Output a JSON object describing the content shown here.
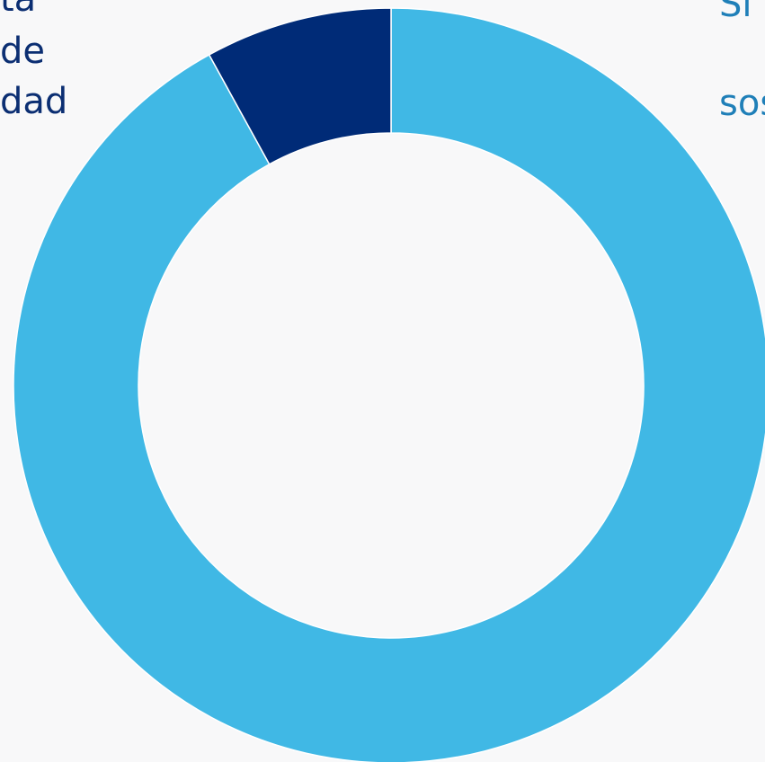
{
  "chart_data": {
    "type": "donut",
    "categories": [
      [
        "Si (",
        "sos"
      ],
      [
        "ta",
        "de",
        "dad"
      ]
    ],
    "values": [
      92,
      8
    ],
    "colors": [
      "#40b8e5",
      "#002b77"
    ],
    "label_colors": [
      "#1f7fb8",
      "#0b2e72"
    ]
  }
}
